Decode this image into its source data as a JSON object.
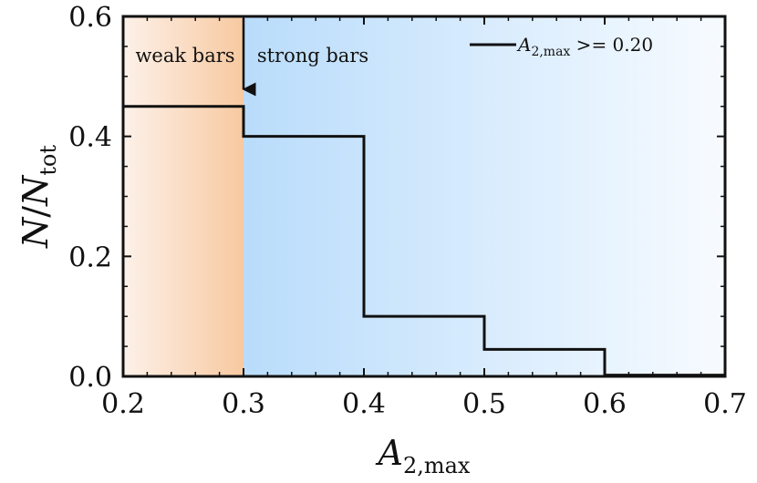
{
  "chart_data": {
    "type": "step",
    "title": "",
    "xlabel": "A_{2,max}",
    "ylabel": "N/N_tot",
    "xlim": [
      0.2,
      0.7
    ],
    "ylim": [
      0.0,
      0.6
    ],
    "xticks": [
      "0.2",
      "0.3",
      "0.4",
      "0.5",
      "0.6",
      "0.7"
    ],
    "yticks": [
      "0.0",
      "0.2",
      "0.4",
      "0.6"
    ],
    "bin_edges": [
      0.2,
      0.3,
      0.4,
      0.5,
      0.6,
      0.7
    ],
    "values": [
      0.45,
      0.4,
      0.1,
      0.045,
      0.002
    ],
    "legend": {
      "position": "top-right",
      "text": "A_{2,max} >= 0.20"
    },
    "annotations": {
      "weak_region_label": "weak  bars",
      "strong_region_label": "strong bars",
      "divider_x": 0.3
    },
    "colors": {
      "weak_region": "#f7c9a0",
      "strong_region": "#b9dcfb",
      "line": "#111111"
    },
    "grid": false
  }
}
